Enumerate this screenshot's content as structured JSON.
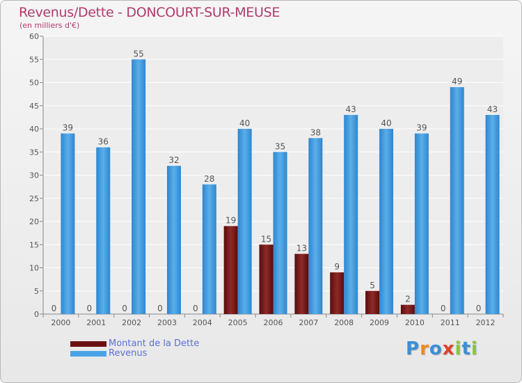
{
  "title": "Revenus/Dette - DONCOURT-SUR-MEUSE",
  "subtitle": "(en milliers d'€)",
  "chart_data": {
    "type": "bar",
    "categories": [
      "2000",
      "2001",
      "2002",
      "2003",
      "2004",
      "2005",
      "2006",
      "2007",
      "2008",
      "2009",
      "2010",
      "2011",
      "2012"
    ],
    "series": [
      {
        "name": "Montant de la Dette",
        "values": [
          0,
          0,
          0,
          0,
          0,
          19,
          15,
          13,
          9,
          5,
          2,
          0,
          0
        ],
        "color": "#7a1a1a"
      },
      {
        "name": "Revenus",
        "values": [
          39,
          36,
          55,
          32,
          28,
          40,
          35,
          38,
          43,
          40,
          39,
          49,
          43
        ],
        "color": "#3e98dc"
      }
    ],
    "ylim": [
      0,
      60
    ],
    "yticks": [
      0,
      5,
      10,
      15,
      20,
      25,
      30,
      35,
      40,
      45,
      50,
      55,
      60
    ],
    "grid": true,
    "legend": "bottom-left"
  },
  "legend": {
    "items": [
      {
        "label": "Montant de la Dette",
        "color": "#6b1010"
      },
      {
        "label": "Revenus",
        "color": "#4aa3e8"
      }
    ]
  },
  "logo": {
    "letters": [
      "P",
      "r",
      "o",
      "x",
      "i",
      "t",
      "i"
    ],
    "colors": [
      "#3a8fd6",
      "#f08a1c",
      "#3a8fd6",
      "#e0402a",
      "#8bc53f",
      "#3a8fd6",
      "#8bc53f"
    ]
  }
}
